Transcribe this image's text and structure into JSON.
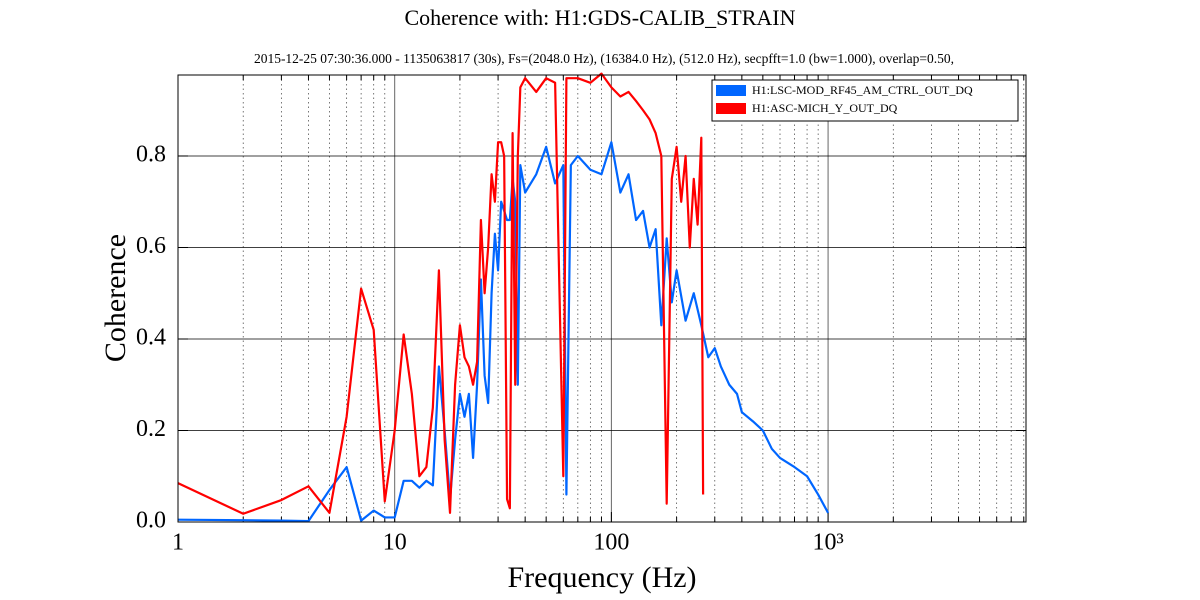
{
  "chart_data": {
    "type": "line",
    "title": "Coherence with: H1:GDS-CALIB_STRAIN",
    "subtitle": "2015-12-25 07:30:36.000 - 1135063817 (30s), Fs=(2048.0 Hz), (16384.0 Hz), (512.0 Hz), secpfft=1.0 (bw=1.000), overlap=0.50,",
    "x_label": "Frequency (Hz)",
    "y_label": "Coherence",
    "xscale": "log",
    "xlim": [
      1,
      8192
    ],
    "ylim": [
      0,
      0.977
    ],
    "xticks": [
      1,
      10,
      100,
      {
        "value": 1000,
        "label": "10³"
      }
    ],
    "yticks": [
      {
        "value": 0,
        "label": "0.0"
      },
      0.2,
      0.4,
      0.6,
      0.8
    ],
    "grid": true,
    "legend": "upper right",
    "series": [
      {
        "name": "H1:LSC-MOD_RF45_AM_CTRL_OUT_DQ",
        "color": "#0066ff",
        "x": [
          1,
          2,
          3,
          4,
          5,
          6,
          7,
          8,
          9,
          10,
          11,
          12,
          13,
          14,
          15,
          16,
          17,
          18,
          19,
          20,
          21,
          22,
          23,
          24,
          25,
          26,
          27,
          28,
          29,
          30,
          31,
          32,
          33,
          34,
          35,
          36,
          37,
          38,
          40,
          45,
          50,
          55,
          60,
          62,
          65,
          70,
          80,
          90,
          100,
          110,
          120,
          130,
          140,
          150,
          160,
          170,
          180,
          190,
          200,
          220,
          240,
          260,
          280,
          300,
          320,
          350,
          380,
          400,
          450,
          500,
          550,
          600,
          700,
          800,
          900,
          1000
        ],
        "values": [
          0.005,
          0.004,
          0.003,
          0.002,
          0.07,
          0.12,
          0.003,
          0.025,
          0.01,
          0.01,
          0.09,
          0.09,
          0.075,
          0.09,
          0.08,
          0.34,
          0.2,
          0.05,
          0.18,
          0.28,
          0.23,
          0.28,
          0.14,
          0.3,
          0.53,
          0.32,
          0.26,
          0.5,
          0.63,
          0.55,
          0.7,
          0.68,
          0.66,
          0.66,
          0.75,
          0.7,
          0.3,
          0.78,
          0.72,
          0.76,
          0.82,
          0.74,
          0.78,
          0.06,
          0.78,
          0.8,
          0.77,
          0.76,
          0.83,
          0.72,
          0.76,
          0.66,
          0.68,
          0.6,
          0.64,
          0.43,
          0.62,
          0.48,
          0.55,
          0.44,
          0.5,
          0.43,
          0.36,
          0.38,
          0.34,
          0.3,
          0.28,
          0.24,
          0.22,
          0.2,
          0.16,
          0.14,
          0.12,
          0.1,
          0.06,
          0.02
        ]
      },
      {
        "name": "H1:ASC-MICH_Y_OUT_DQ",
        "color": "#ff0000",
        "x": [
          1,
          2,
          3,
          4,
          5,
          6,
          7,
          8,
          9,
          10,
          11,
          12,
          13,
          14,
          15,
          16,
          17,
          18,
          19,
          20,
          21,
          22,
          23,
          24,
          25,
          26,
          27,
          28,
          29,
          30,
          31,
          32,
          33,
          34,
          35,
          36,
          37,
          38,
          40,
          45,
          50,
          55,
          60,
          62,
          70,
          80,
          90,
          100,
          110,
          120,
          130,
          140,
          150,
          160,
          170,
          180,
          190,
          200,
          210,
          220,
          230,
          240,
          250,
          260,
          265
        ],
        "values": [
          0.085,
          0.018,
          0.048,
          0.078,
          0.02,
          0.23,
          0.51,
          0.42,
          0.045,
          0.2,
          0.41,
          0.28,
          0.1,
          0.12,
          0.25,
          0.55,
          0.18,
          0.02,
          0.3,
          0.43,
          0.36,
          0.34,
          0.3,
          0.35,
          0.66,
          0.5,
          0.6,
          0.76,
          0.7,
          0.83,
          0.83,
          0.8,
          0.05,
          0.03,
          0.85,
          0.3,
          0.8,
          0.95,
          0.97,
          0.94,
          0.97,
          0.96,
          0.1,
          0.97,
          0.97,
          0.96,
          0.98,
          0.95,
          0.93,
          0.94,
          0.92,
          0.9,
          0.88,
          0.85,
          0.8,
          0.04,
          0.75,
          0.82,
          0.7,
          0.8,
          0.6,
          0.75,
          0.65,
          0.84,
          0.06
        ]
      }
    ]
  }
}
